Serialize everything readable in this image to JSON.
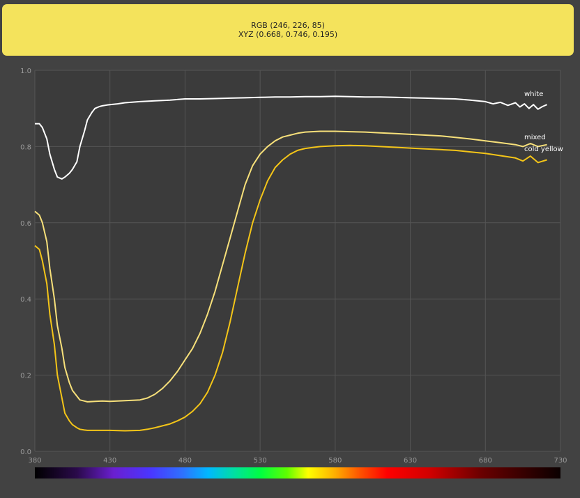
{
  "swatch": {
    "color": "#f4e35c",
    "rgb_label": "RGB (246, 226, 85)",
    "xyz_label": "XYZ (0.668, 0.746, 0.195)"
  },
  "colors": {
    "background": "#424242",
    "plot_background": "#3b3b3b",
    "grid": "#555555"
  },
  "chart_data": {
    "type": "line",
    "title": "",
    "xlabel": "",
    "ylabel": "",
    "xlim": [
      380,
      730
    ],
    "ylim": [
      0,
      1.0
    ],
    "grid": true,
    "xticks": [
      "380",
      "430",
      "480",
      "530",
      "580",
      "630",
      "680",
      "730"
    ],
    "yticks": [
      "0.0",
      "0.2",
      "0.4",
      "0.6",
      "0.8",
      "1.0"
    ],
    "spectrum_bar": true,
    "series": [
      {
        "name": "white",
        "color": "#ffffff",
        "x": [
          380,
          383,
          385,
          388,
          390,
          393,
          395,
          398,
          400,
          403,
          405,
          408,
          410,
          413,
          415,
          418,
          420,
          423,
          425,
          428,
          430,
          435,
          440,
          450,
          460,
          470,
          480,
          490,
          500,
          510,
          520,
          530,
          540,
          550,
          560,
          570,
          580,
          590,
          600,
          610,
          620,
          630,
          640,
          650,
          660,
          670,
          680,
          685,
          690,
          695,
          700,
          703,
          706,
          709,
          712,
          715,
          718,
          721
        ],
        "values": [
          0.86,
          0.86,
          0.85,
          0.82,
          0.78,
          0.74,
          0.72,
          0.715,
          0.72,
          0.73,
          0.74,
          0.76,
          0.8,
          0.84,
          0.87,
          0.89,
          0.9,
          0.905,
          0.907,
          0.909,
          0.91,
          0.912,
          0.915,
          0.918,
          0.92,
          0.922,
          0.925,
          0.925,
          0.926,
          0.927,
          0.928,
          0.929,
          0.93,
          0.93,
          0.931,
          0.931,
          0.932,
          0.931,
          0.93,
          0.93,
          0.929,
          0.928,
          0.927,
          0.926,
          0.925,
          0.922,
          0.918,
          0.912,
          0.916,
          0.908,
          0.915,
          0.904,
          0.912,
          0.9,
          0.91,
          0.898,
          0.905,
          0.91
        ]
      },
      {
        "name": "mixed",
        "color": "#f7e07a",
        "x": [
          380,
          383,
          385,
          388,
          390,
          393,
          395,
          398,
          400,
          403,
          405,
          408,
          410,
          413,
          415,
          420,
          425,
          430,
          440,
          450,
          455,
          460,
          465,
          470,
          475,
          480,
          485,
          490,
          495,
          500,
          505,
          510,
          515,
          520,
          525,
          530,
          535,
          540,
          545,
          550,
          555,
          560,
          570,
          580,
          590,
          600,
          610,
          620,
          630,
          640,
          650,
          660,
          670,
          680,
          690,
          700,
          705,
          710,
          715,
          721
        ],
        "values": [
          0.63,
          0.62,
          0.6,
          0.55,
          0.48,
          0.4,
          0.33,
          0.27,
          0.22,
          0.18,
          0.16,
          0.145,
          0.135,
          0.132,
          0.13,
          0.131,
          0.132,
          0.131,
          0.133,
          0.135,
          0.14,
          0.15,
          0.165,
          0.185,
          0.21,
          0.24,
          0.27,
          0.31,
          0.36,
          0.42,
          0.49,
          0.56,
          0.63,
          0.7,
          0.75,
          0.78,
          0.8,
          0.815,
          0.825,
          0.83,
          0.835,
          0.838,
          0.84,
          0.84,
          0.839,
          0.838,
          0.836,
          0.834,
          0.832,
          0.83,
          0.828,
          0.824,
          0.82,
          0.815,
          0.81,
          0.805,
          0.8,
          0.808,
          0.8,
          0.805
        ]
      },
      {
        "name": "cold yellow",
        "color": "#f4c518",
        "x": [
          380,
          383,
          385,
          388,
          390,
          393,
          395,
          398,
          400,
          403,
          405,
          408,
          410,
          413,
          415,
          420,
          425,
          430,
          440,
          450,
          455,
          460,
          465,
          470,
          475,
          480,
          485,
          490,
          495,
          500,
          505,
          510,
          515,
          520,
          525,
          530,
          535,
          540,
          545,
          550,
          555,
          560,
          570,
          580,
          590,
          600,
          610,
          620,
          630,
          640,
          650,
          660,
          670,
          680,
          690,
          700,
          705,
          710,
          715,
          721
        ],
        "values": [
          0.54,
          0.53,
          0.5,
          0.44,
          0.36,
          0.28,
          0.2,
          0.14,
          0.1,
          0.08,
          0.07,
          0.062,
          0.058,
          0.056,
          0.055,
          0.055,
          0.055,
          0.055,
          0.054,
          0.055,
          0.058,
          0.062,
          0.067,
          0.072,
          0.08,
          0.09,
          0.105,
          0.125,
          0.155,
          0.2,
          0.26,
          0.34,
          0.43,
          0.52,
          0.6,
          0.66,
          0.71,
          0.745,
          0.765,
          0.78,
          0.79,
          0.795,
          0.8,
          0.802,
          0.803,
          0.802,
          0.8,
          0.798,
          0.796,
          0.794,
          0.792,
          0.79,
          0.786,
          0.782,
          0.776,
          0.77,
          0.762,
          0.775,
          0.758,
          0.765
        ]
      }
    ]
  }
}
